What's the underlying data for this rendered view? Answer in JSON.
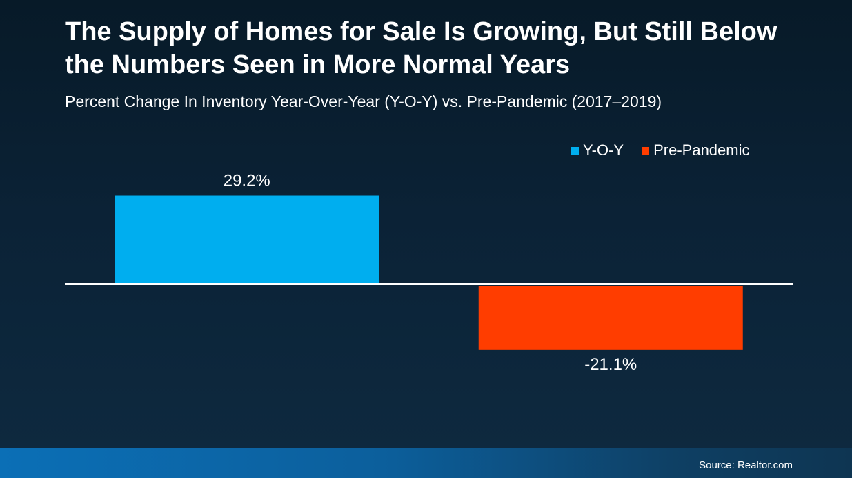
{
  "chart_data": {
    "type": "bar",
    "title": "The Supply of Homes for Sale Is Growing, But Still Below the Numbers Seen in More Normal Years",
    "subtitle": "Percent Change In Inventory Year-Over-Year (Y-O-Y) vs. Pre-Pandemic (2017–2019)",
    "categories": [
      "Y-O-Y",
      "Pre-Pandemic"
    ],
    "values": [
      29.2,
      -21.1
    ],
    "value_labels": [
      "29.2%",
      "-21.1%"
    ],
    "colors": [
      "#00aeef",
      "#ff3d00"
    ],
    "legend": [
      {
        "label": "Y-O-Y",
        "color": "#00aeef"
      },
      {
        "label": "Pre-Pandemic",
        "color": "#ff3d00"
      }
    ],
    "legend_position": "top-right",
    "grid": false,
    "ylim": [
      -35,
      35
    ]
  },
  "source": "Source: Realtor.com"
}
